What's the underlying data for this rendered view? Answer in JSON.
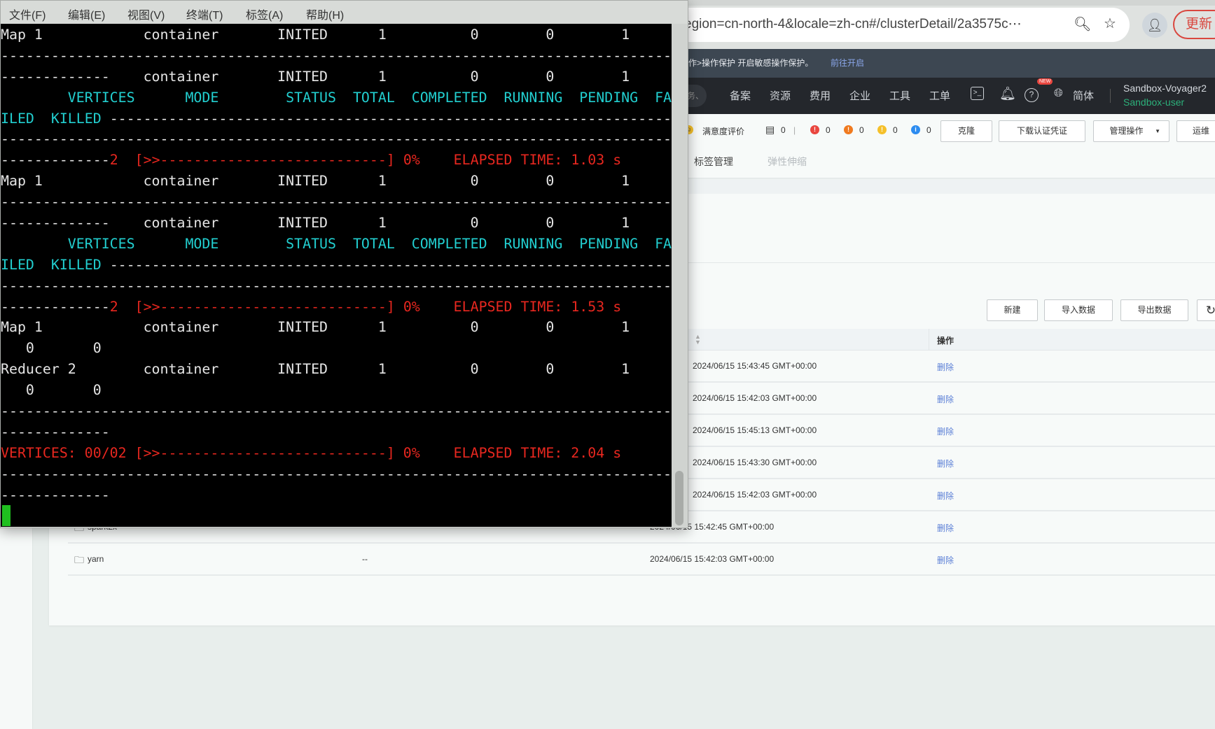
{
  "browser": {
    "url": "egion=cn-north-4&locale=zh-cn#/clusterDetail/2a3575c⋯",
    "update_label": "更新",
    "banner_text": "作>操作保护 开启敏感操作保护。",
    "banner_link": "前往开启",
    "nav_search_hint": "务、",
    "nav_items": [
      "备案",
      "资源",
      "费用",
      "企业",
      "工具",
      "工单"
    ],
    "new_badge": "NEW",
    "language": "简体",
    "account_name": "Sandbox-Voyager2",
    "account_user": "Sandbox-user"
  },
  "toolbar": {
    "satisfaction": "满意度评价",
    "doc_count": "0",
    "alarms": [
      {
        "color": "#e9463f",
        "count": "0"
      },
      {
        "color": "#f07a1f",
        "count": "0"
      },
      {
        "color": "#f5c02a",
        "count": "0"
      },
      {
        "color": "#2d8cf0",
        "count": "0"
      }
    ],
    "buttons": [
      "克隆",
      "下载认证凭证",
      "管理操作",
      "运维"
    ]
  },
  "tabs": [
    "标签管理",
    "弹性伸缩"
  ],
  "table": {
    "buttons": [
      "新建",
      "导入数据",
      "导出数据"
    ],
    "header_action": "操作",
    "rows": [
      {
        "name": "",
        "desc": "",
        "time": "2024/06/15 15:43:45 GMT+00:00",
        "action": "删除"
      },
      {
        "name": "",
        "desc": "",
        "time": "2024/06/15 15:42:03 GMT+00:00",
        "action": "删除"
      },
      {
        "name": "",
        "desc": "",
        "time": "2024/06/15 15:45:13 GMT+00:00",
        "action": "删除"
      },
      {
        "name": "",
        "desc": "",
        "time": "2024/06/15 15:43:30 GMT+00:00",
        "action": "删除"
      },
      {
        "name": "",
        "desc": "",
        "time": "2024/06/15 15:42:03 GMT+00:00",
        "action": "删除"
      },
      {
        "name": "spark2x",
        "desc": "--",
        "time": "2024/06/15 15:42:45 GMT+00:00",
        "action": "删除"
      },
      {
        "name": "yarn",
        "desc": "--",
        "time": "2024/06/15 15:42:03 GMT+00:00",
        "action": "删除"
      }
    ]
  },
  "terminal": {
    "menu": [
      "文件(F)",
      "编辑(E)",
      "视图(V)",
      "终端(T)",
      "标签(A)",
      "帮助(H)"
    ],
    "colors": {
      "white": "#e6e6e6",
      "cyan": "#22cfd0",
      "red": "#e8271f",
      "cursor": "#1fbf1f"
    },
    "lines": [
      [
        [
          "w",
          "Map 1            container       INITED      1          0        0        1"
        ]
      ],
      [
        [
          "w",
          "--------------------------------------------------------------------------------"
        ]
      ],
      [
        [
          "w",
          "-------------    container       INITED      1          0        0        1"
        ]
      ],
      [
        [
          "c",
          "        VERTICES      MODE        STATUS  TOTAL  COMPLETED  RUNNING  PENDING  FA"
        ]
      ],
      [
        [
          "c",
          "ILED  KILLED "
        ],
        [
          "w",
          "-------------------------------------------------------------------"
        ]
      ],
      [
        [
          "w",
          "--------------------------------------------------------------------------------"
        ]
      ],
      [
        [
          "w",
          "-------------"
        ],
        [
          "r",
          "2  [>>---------------------------] 0%    ELAPSED TIME: 1.03 s"
        ]
      ],
      [
        [
          "w",
          "Map 1            container       INITED      1          0        0        1"
        ]
      ],
      [
        [
          "w",
          "--------------------------------------------------------------------------------"
        ]
      ],
      [
        [
          "w",
          "-------------    container       INITED      1          0        0        1"
        ]
      ],
      [
        [
          "c",
          "        VERTICES      MODE        STATUS  TOTAL  COMPLETED  RUNNING  PENDING  FA"
        ]
      ],
      [
        [
          "c",
          "ILED  KILLED "
        ],
        [
          "w",
          "-------------------------------------------------------------------"
        ]
      ],
      [
        [
          "w",
          "--------------------------------------------------------------------------------"
        ]
      ],
      [
        [
          "w",
          "-------------"
        ],
        [
          "r",
          "2  [>>---------------------------] 0%    ELAPSED TIME: 1.53 s"
        ]
      ],
      [
        [
          "w",
          "Map 1            container       INITED      1          0        0        1"
        ]
      ],
      [
        [
          "w",
          "   0       0"
        ]
      ],
      [
        [
          "w",
          "Reducer 2        container       INITED      1          0        0        1"
        ]
      ],
      [
        [
          "w",
          "   0       0"
        ]
      ],
      [
        [
          "w",
          "--------------------------------------------------------------------------------"
        ]
      ],
      [
        [
          "w",
          "-------------"
        ]
      ],
      [
        [
          "r",
          "VERTICES: 00/02 [>>---------------------------] 0%    ELAPSED TIME: 2.04 s"
        ]
      ],
      [
        [
          "w",
          "--------------------------------------------------------------------------------"
        ]
      ],
      [
        [
          "w",
          "-------------"
        ]
      ]
    ]
  }
}
